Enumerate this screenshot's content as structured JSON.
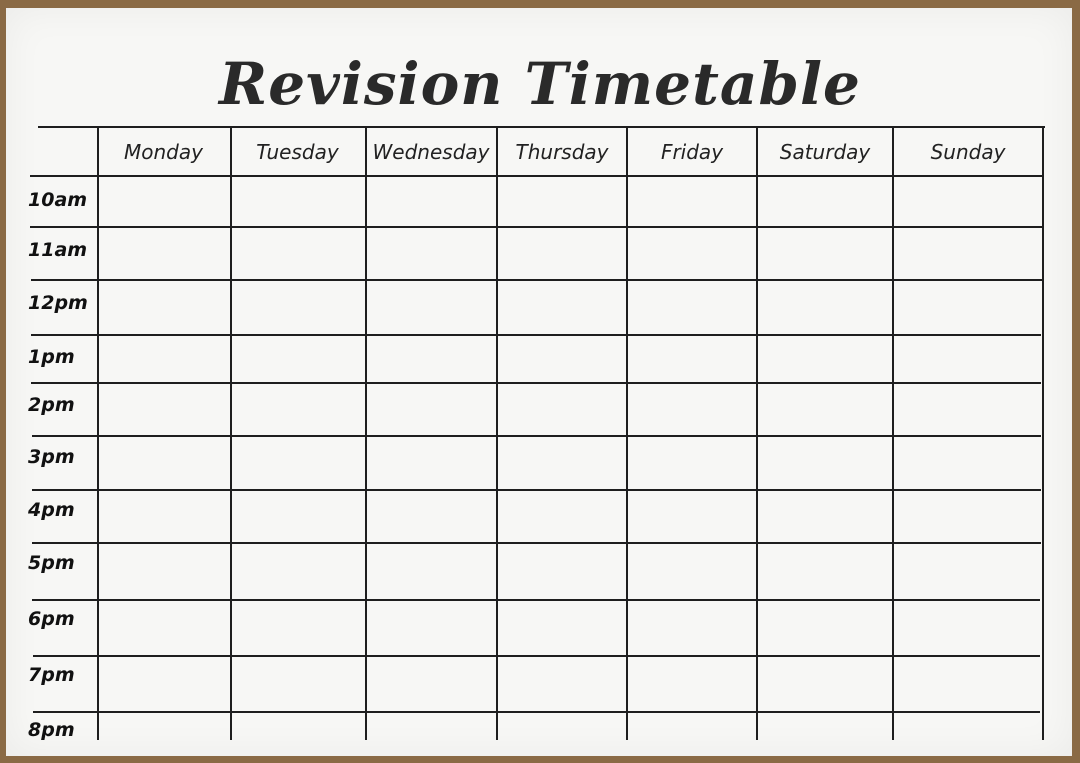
{
  "title": "Revision Timetable",
  "days": [
    "Monday",
    "Tuesday",
    "Wednesday",
    "Thursday",
    "Friday",
    "Saturday",
    "Sunday"
  ],
  "times": [
    "10am",
    "11am",
    "12pm",
    "1pm",
    "2pm",
    "3pm",
    "4pm",
    "5pm",
    "6pm",
    "7pm",
    "8pm"
  ]
}
